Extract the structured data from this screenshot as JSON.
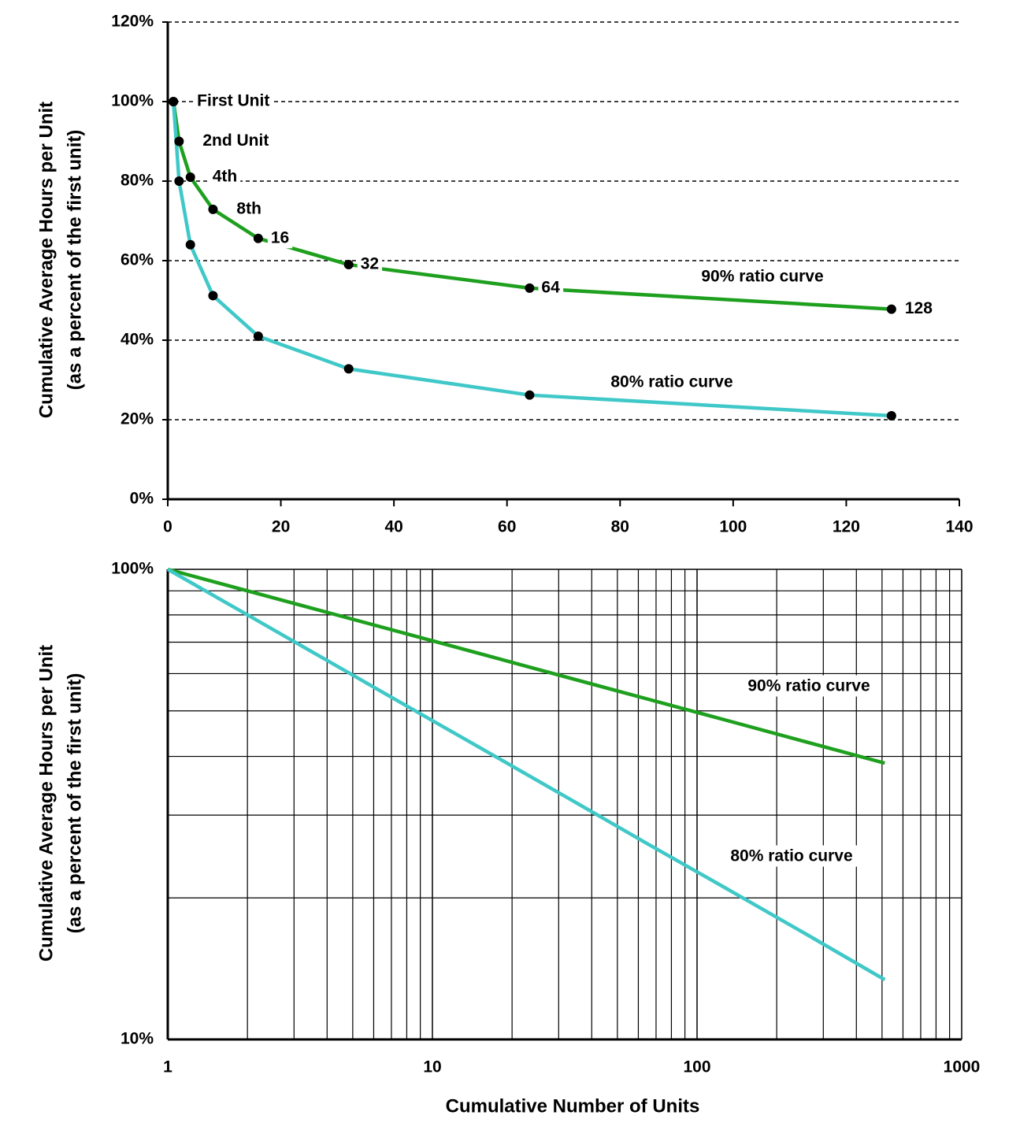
{
  "chart_data": [
    {
      "type": "line",
      "xlim": [
        0,
        140
      ],
      "xticks": [
        0,
        20,
        40,
        60,
        80,
        100,
        120,
        140
      ],
      "ylim": [
        0,
        120
      ],
      "yticks": [
        {
          "value": 0,
          "label": "0%"
        },
        {
          "value": 20,
          "label": "20%"
        },
        {
          "value": 40,
          "label": "40%"
        },
        {
          "value": 60,
          "label": "60%"
        },
        {
          "value": 80,
          "label": "80%"
        },
        {
          "value": 100,
          "label": "100%"
        },
        {
          "value": 120,
          "label": "120%"
        }
      ],
      "grid": true,
      "markers": true,
      "ylabel": [
        "Cumulative Average Hours per Unit",
        "(as a percent of the first unit)"
      ],
      "series": [
        {
          "name": "90% ratio curve",
          "color": "#1ea01e",
          "x": [
            1,
            2,
            4,
            8,
            16,
            32,
            64,
            128
          ],
          "values": [
            100,
            90,
            81,
            72.9,
            65.6,
            59,
            53.1,
            47.8
          ],
          "point_labels": [
            "First Unit",
            "2nd Unit",
            "4th",
            "8th",
            "16",
            "32",
            "64",
            "128"
          ]
        },
        {
          "name": "80% ratio curve",
          "color": "#40c8c8",
          "x": [
            1,
            2,
            4,
            8,
            16,
            32,
            64,
            128
          ],
          "values": [
            100,
            80,
            64,
            51.2,
            41,
            32.8,
            26.2,
            21
          ]
        }
      ]
    },
    {
      "type": "line",
      "xscale": "log",
      "yscale": "log",
      "xlim": [
        1,
        1000
      ],
      "xticks": [
        1,
        10,
        100,
        1000
      ],
      "minor_xticks": [
        2,
        3,
        4,
        5,
        6,
        7,
        8,
        9,
        20,
        30,
        40,
        50,
        60,
        70,
        80,
        90,
        200,
        300,
        400,
        500,
        600,
        700,
        800,
        900
      ],
      "ylim": [
        10,
        100
      ],
      "yticks": [
        {
          "value": 10,
          "label": "10%"
        },
        {
          "value": 100,
          "label": "100%"
        }
      ],
      "minor_yticks": [
        20,
        30,
        40,
        50,
        60,
        70,
        80,
        90
      ],
      "grid": true,
      "markers": false,
      "xlabel": "Cumulative Number of Units",
      "ylabel": [
        "Cumulative Average Hours per Unit",
        "(as a percent of the first unit)"
      ],
      "series": [
        {
          "name": "90% ratio curve",
          "color": "#1ea01e",
          "x": [
            1,
            2,
            4,
            8,
            16,
            32,
            64,
            128,
            256,
            512
          ],
          "values": [
            100,
            90,
            81,
            72.9,
            65.6,
            59,
            53.1,
            47.8,
            43,
            38.7
          ]
        },
        {
          "name": "80% ratio curve",
          "color": "#40c8c8",
          "x": [
            1,
            2,
            4,
            8,
            16,
            32,
            64,
            128,
            256,
            512
          ],
          "values": [
            100,
            80,
            64,
            51.2,
            41,
            32.8,
            26.2,
            21,
            16.8,
            13.4
          ]
        }
      ]
    }
  ]
}
